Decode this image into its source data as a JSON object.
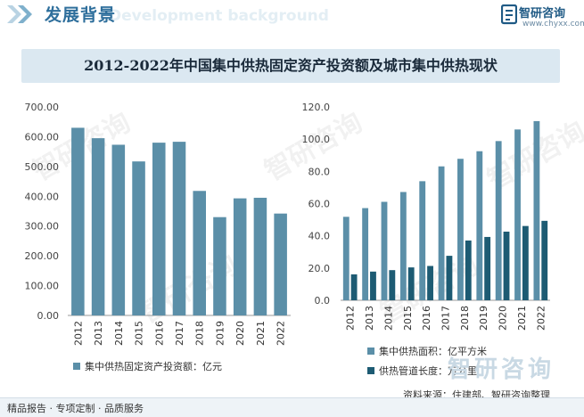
{
  "header": {
    "title": "发展背景",
    "subtitle": "Development background",
    "logo_name": "智研咨询",
    "logo_url": "www.chyxx.com"
  },
  "watermark_text": "智研咨询",
  "main_title": "2012-2022年中国集中供热固定资产投资额及城市集中供热现状",
  "chart_data": [
    {
      "type": "bar",
      "categories": [
        "2012",
        "2013",
        "2014",
        "2015",
        "2016",
        "2017",
        "2018",
        "2019",
        "2020",
        "2021",
        "2022"
      ],
      "series": [
        {
          "name": "集中供热固定资产投资额：亿元",
          "values": [
            630,
            595,
            573,
            517,
            580,
            583,
            418,
            330,
            393,
            395,
            342
          ],
          "color": "#5b8fa8"
        }
      ],
      "ylim": [
        0,
        700
      ],
      "yticks": [
        "0.00",
        "100.00",
        "200.00",
        "300.00",
        "400.00",
        "500.00",
        "600.00",
        "700.00"
      ],
      "legend": "bottom"
    },
    {
      "type": "bar",
      "categories": [
        "2012",
        "2013",
        "2014",
        "2015",
        "2016",
        "2017",
        "2018",
        "2019",
        "2020",
        "2021",
        "2022"
      ],
      "series": [
        {
          "name": "集中供热面积：亿平方米",
          "values": [
            51.8,
            57.2,
            61.1,
            67.2,
            73.9,
            83.1,
            87.8,
            92.5,
            98.8,
            106.0,
            111.2
          ],
          "color": "#5b8fa8"
        },
        {
          "name": "供热管道长度：万公里",
          "values": [
            16.1,
            17.8,
            18.7,
            20.4,
            21.3,
            27.6,
            37.1,
            39.3,
            42.6,
            46.1,
            49.3
          ],
          "color": "#1d5b73"
        }
      ],
      "ylim": [
        0,
        120
      ],
      "yticks": [
        "0.0",
        "20.0",
        "40.0",
        "60.0",
        "80.0",
        "100.0",
        "120.0"
      ],
      "legend": "bottom"
    }
  ],
  "footer": {
    "left": "精品报告 · 专项定制 · 品质服务",
    "right": "资料来源：住建部、智研咨询整理"
  }
}
